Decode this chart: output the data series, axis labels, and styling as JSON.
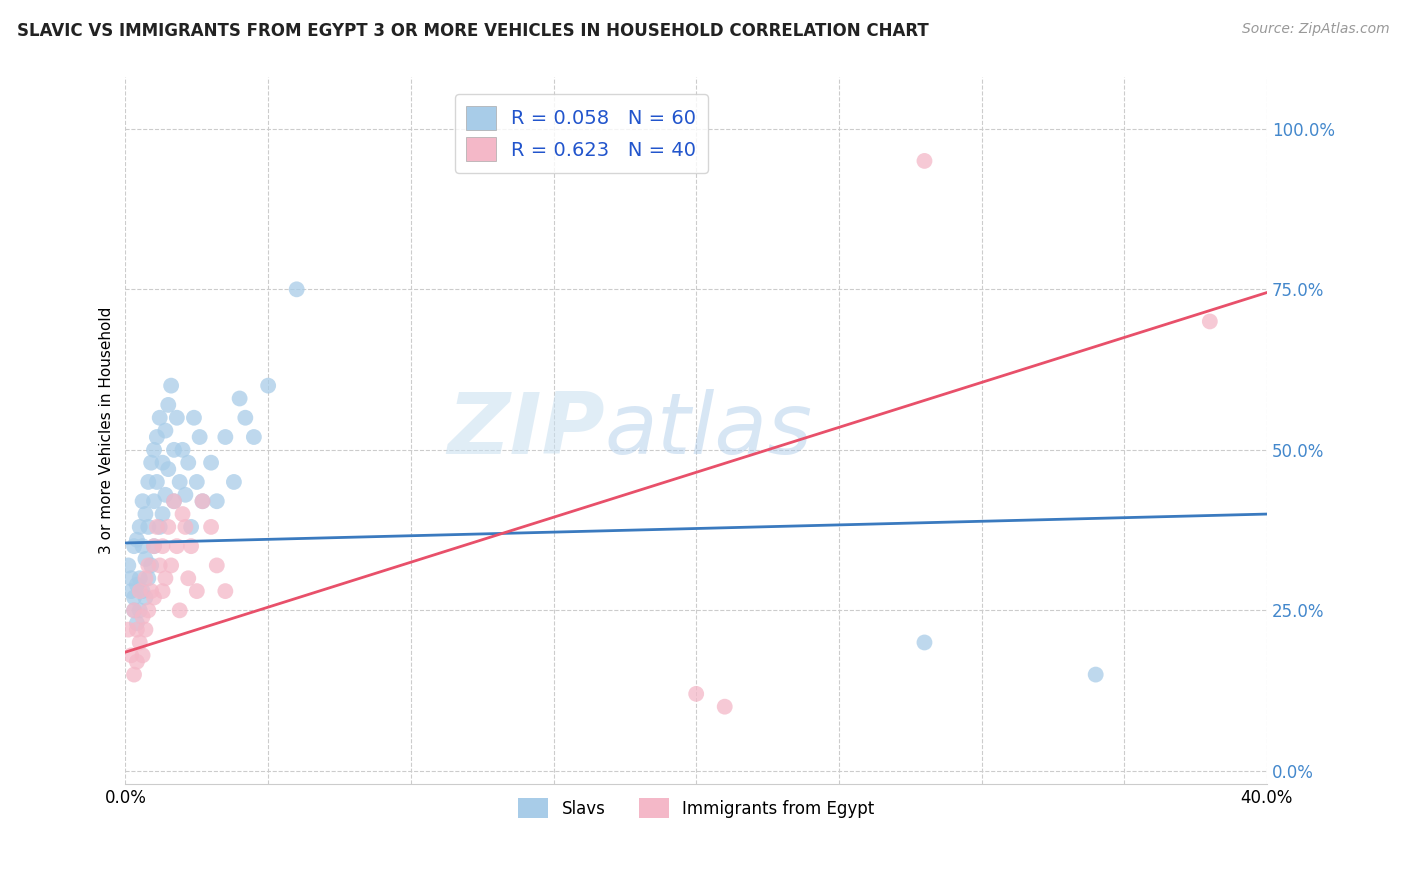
{
  "title": "SLAVIC VS IMMIGRANTS FROM EGYPT 3 OR MORE VEHICLES IN HOUSEHOLD CORRELATION CHART",
  "source_text": "Source: ZipAtlas.com",
  "ylabel": "3 or more Vehicles in Household",
  "xlim": [
    0.0,
    0.4
  ],
  "ylim": [
    -0.02,
    1.08
  ],
  "ytick_values": [
    0.0,
    0.25,
    0.5,
    0.75,
    1.0
  ],
  "xtick_values": [
    0.0,
    0.05,
    0.1,
    0.15,
    0.2,
    0.25,
    0.3,
    0.35,
    0.4
  ],
  "legend_labels": [
    "Slavs",
    "Immigrants from Egypt"
  ],
  "r_slavs": 0.058,
  "n_slavs": 60,
  "r_egypt": 0.623,
  "n_egypt": 40,
  "slavs_color": "#a8cce8",
  "egypt_color": "#f4b8c8",
  "slavs_line_color": "#3a7abf",
  "egypt_line_color": "#e8506a",
  "watermark_zip": "ZIP",
  "watermark_atlas": "atlas",
  "slavs_x": [
    0.001,
    0.002,
    0.002,
    0.003,
    0.003,
    0.003,
    0.004,
    0.004,
    0.004,
    0.005,
    0.005,
    0.005,
    0.006,
    0.006,
    0.006,
    0.007,
    0.007,
    0.007,
    0.008,
    0.008,
    0.008,
    0.009,
    0.009,
    0.01,
    0.01,
    0.01,
    0.011,
    0.011,
    0.012,
    0.012,
    0.013,
    0.013,
    0.014,
    0.014,
    0.015,
    0.015,
    0.016,
    0.017,
    0.017,
    0.018,
    0.019,
    0.02,
    0.021,
    0.022,
    0.023,
    0.024,
    0.025,
    0.026,
    0.027,
    0.03,
    0.032,
    0.035,
    0.038,
    0.04,
    0.042,
    0.045,
    0.05,
    0.06,
    0.28,
    0.34
  ],
  "slavs_y": [
    0.32,
    0.3,
    0.28,
    0.35,
    0.27,
    0.25,
    0.36,
    0.29,
    0.23,
    0.38,
    0.3,
    0.25,
    0.42,
    0.35,
    0.28,
    0.4,
    0.33,
    0.27,
    0.45,
    0.38,
    0.3,
    0.48,
    0.32,
    0.5,
    0.42,
    0.35,
    0.52,
    0.45,
    0.55,
    0.38,
    0.48,
    0.4,
    0.53,
    0.43,
    0.57,
    0.47,
    0.6,
    0.5,
    0.42,
    0.55,
    0.45,
    0.5,
    0.43,
    0.48,
    0.38,
    0.55,
    0.45,
    0.52,
    0.42,
    0.48,
    0.42,
    0.52,
    0.45,
    0.58,
    0.55,
    0.52,
    0.6,
    0.75,
    0.2,
    0.15
  ],
  "egypt_x": [
    0.001,
    0.002,
    0.003,
    0.003,
    0.004,
    0.004,
    0.005,
    0.005,
    0.006,
    0.006,
    0.007,
    0.007,
    0.008,
    0.008,
    0.009,
    0.01,
    0.01,
    0.011,
    0.012,
    0.013,
    0.013,
    0.014,
    0.015,
    0.016,
    0.017,
    0.018,
    0.019,
    0.02,
    0.021,
    0.022,
    0.023,
    0.025,
    0.027,
    0.03,
    0.032,
    0.035,
    0.2,
    0.21,
    0.28,
    0.38
  ],
  "egypt_y": [
    0.22,
    0.18,
    0.25,
    0.15,
    0.22,
    0.17,
    0.28,
    0.2,
    0.24,
    0.18,
    0.3,
    0.22,
    0.32,
    0.25,
    0.28,
    0.35,
    0.27,
    0.38,
    0.32,
    0.28,
    0.35,
    0.3,
    0.38,
    0.32,
    0.42,
    0.35,
    0.25,
    0.4,
    0.38,
    0.3,
    0.35,
    0.28,
    0.42,
    0.38,
    0.32,
    0.28,
    0.12,
    0.1,
    0.95,
    0.7
  ],
  "slavs_line_x0": 0.0,
  "slavs_line_y0": 0.355,
  "slavs_line_x1": 0.4,
  "slavs_line_y1": 0.4,
  "egypt_line_x0": 0.0,
  "egypt_line_y0": 0.185,
  "egypt_line_x1": 0.4,
  "egypt_line_y1": 0.745
}
